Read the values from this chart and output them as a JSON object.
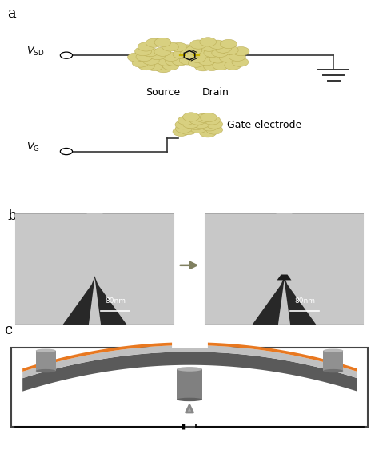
{
  "panel_a_label": "a",
  "panel_b_label": "b",
  "panel_c_label": "c",
  "source_label": "Source",
  "drain_label": "Drain",
  "gate_label": "Gate electrode",
  "scale_bar_text": "80nm",
  "bg_color": "#ffffff",
  "gold_color": "#d8d080",
  "gold_edge": "#b8aa50",
  "wire_color": "#333333",
  "ground_color": "#333333",
  "sem_bg": "#2a2a2a",
  "sem_light_gray": "#c0c0c0",
  "sem_mid_gray": "#909090",
  "sem_dark_gap": "#1a1a1a",
  "arrow_color": "#888888",
  "orange_color": "#e87820",
  "light_gray_beam": "#b8b8b8",
  "dark_gray_beam": "#606060",
  "rod_color": "#808080",
  "rod_light": "#a8a8a8",
  "box_color": "#444444"
}
